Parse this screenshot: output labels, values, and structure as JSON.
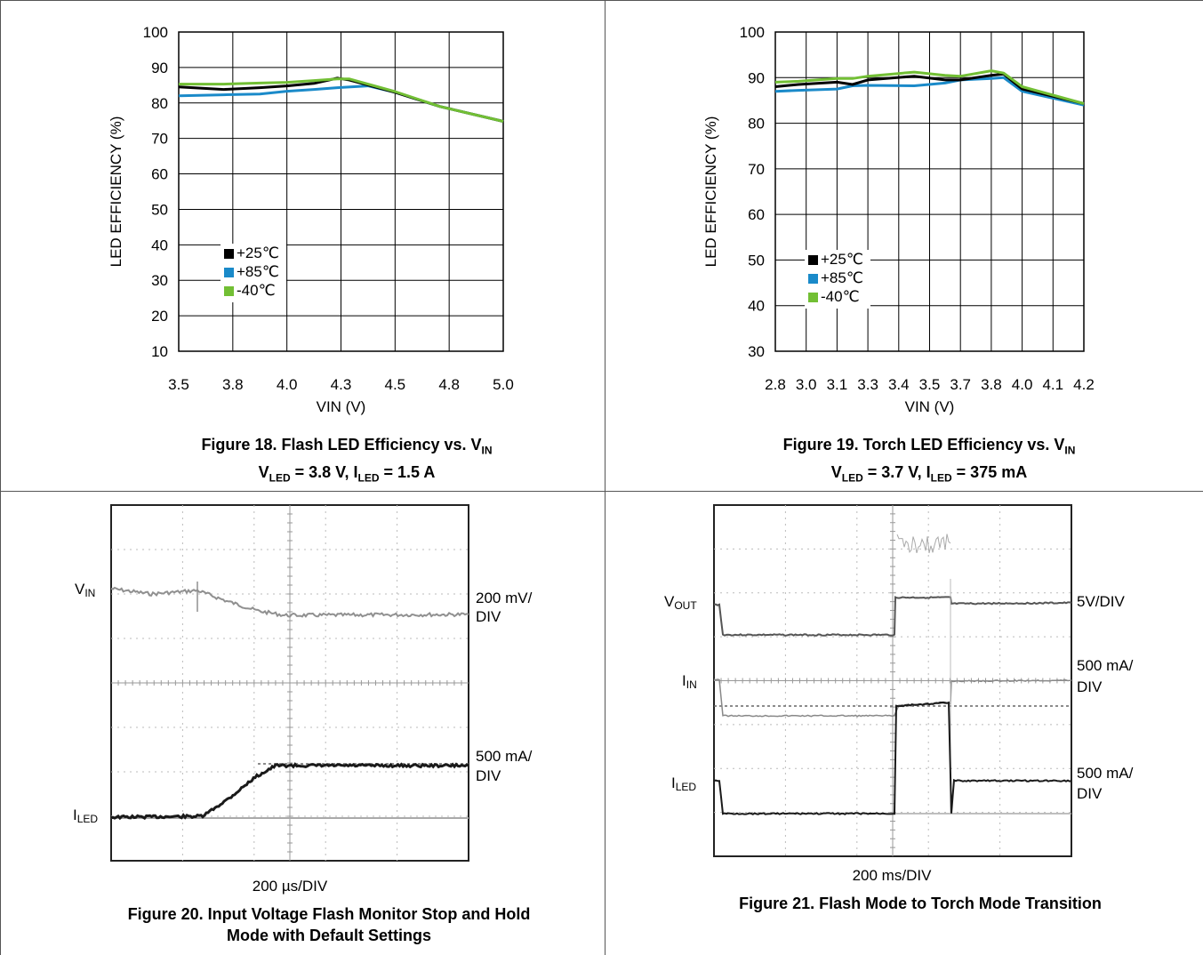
{
  "colors": {
    "series_25": "#000000",
    "series_85": "#1a8ac9",
    "series_m40": "#72bf34",
    "trace_light": "#909090",
    "trace_dark": "#1a1a1a"
  },
  "fig18": {
    "caption_line1": "Figure 18. Flash LED Efficiency vs. V",
    "caption_line1_sub": "IN",
    "caption_line2_a": "V",
    "caption_line2_a_sub": "LED",
    "caption_line2_b": " = 3.8 V, I",
    "caption_line2_b_sub": "LED",
    "caption_line2_c": " = 1.5 A"
  },
  "fig19": {
    "caption_line1": "Figure 19. Torch LED Efficiency vs. V",
    "caption_line1_sub": "IN",
    "caption_line2_a": "V",
    "caption_line2_a_sub": "LED",
    "caption_line2_b": " = 3.7 V, I",
    "caption_line2_b_sub": "LED",
    "caption_line2_c": " = 375 mA"
  },
  "fig20": {
    "label_vin": "V",
    "label_vin_sub": "IN",
    "label_iled": "I",
    "label_iled_sub": "LED",
    "scale_vin_1": "200 mV/",
    "scale_vin_2": "DIV",
    "scale_iled_1": "500 mA/",
    "scale_iled_2": "DIV",
    "time_scale": "200 µs/DIV",
    "caption_line1": "Figure 20. Input Voltage Flash Monitor Stop and Hold",
    "caption_line2": "Mode with Default Settings"
  },
  "fig21": {
    "label_vout": "V",
    "label_vout_sub": "OUT",
    "label_iin": "I",
    "label_iin_sub": "IN",
    "label_iled": "I",
    "label_iled_sub": "LED",
    "scale_vout": "5V/DIV",
    "scale_iin_1": "500 mA/",
    "scale_iin_2": "DIV",
    "scale_iled_1": "500 mA/",
    "scale_iled_2": "DIV",
    "time_scale": "200 ms/DIV",
    "caption": "Figure 21. Flash Mode to Torch Mode Transition"
  },
  "chart_data": [
    {
      "type": "line",
      "xlabel": "VIN (V)",
      "ylabel": "LED EFFICIENCY (%)",
      "xlim": [
        3.5,
        5.0
      ],
      "ylim": [
        10,
        100
      ],
      "xticks": [
        "3.5",
        "3.8",
        "4.0",
        "4.3",
        "4.5",
        "4.8",
        "5.0"
      ],
      "yticks": [
        "10",
        "20",
        "30",
        "40",
        "50",
        "60",
        "70",
        "80",
        "90",
        "100"
      ],
      "grid": true,
      "legend_position": "left-center",
      "series": [
        {
          "name": "+25℃",
          "x": [
            3.5,
            3.75,
            3.9,
            4.0,
            4.15,
            4.28,
            4.33,
            4.5,
            4.75,
            5.0
          ],
          "y": [
            84.5,
            83.8,
            84.3,
            84.8,
            85.5,
            87,
            86.5,
            83,
            79,
            74.8
          ]
        },
        {
          "name": "+85℃",
          "x": [
            3.5,
            3.75,
            3.9,
            4.0,
            4.15,
            4.28,
            4.4,
            4.5,
            4.75,
            5.0
          ],
          "y": [
            82,
            82.3,
            82.5,
            83.3,
            83.8,
            84.3,
            84.8,
            83,
            79,
            74.8
          ]
        },
        {
          "name": "-40℃",
          "x": [
            3.5,
            3.75,
            3.9,
            4.0,
            4.15,
            4.28,
            4.33,
            4.5,
            4.75,
            5.0
          ],
          "y": [
            85.3,
            85.3,
            85.6,
            85.8,
            86.3,
            86.8,
            86.8,
            83.2,
            79,
            74.8
          ]
        }
      ]
    },
    {
      "type": "line",
      "xlabel": "VIN (V)",
      "ylabel": "LED EFFICIENCY (%)",
      "xlim": [
        2.8,
        4.2
      ],
      "ylim": [
        30,
        100
      ],
      "xticks": [
        "2.8",
        "3.0",
        "3.1",
        "3.3",
        "3.4",
        "3.5",
        "3.7",
        "3.8",
        "4.0",
        "4.1",
        "4.2"
      ],
      "yticks": [
        "30",
        "40",
        "50",
        "60",
        "70",
        "80",
        "90",
        "100"
      ],
      "grid": true,
      "legend_position": "left-center",
      "series": [
        {
          "name": "+25℃",
          "x": [
            2.8,
            2.95,
            3.1,
            3.2,
            3.3,
            3.45,
            3.6,
            3.7,
            3.8,
            3.88,
            4.0,
            4.2
          ],
          "y": [
            88,
            88.5,
            89,
            88.5,
            89.5,
            90.3,
            89.5,
            89.5,
            90.5,
            90.8,
            87.5,
            84.3
          ]
        },
        {
          "name": "+85℃",
          "x": [
            2.8,
            2.95,
            3.1,
            3.2,
            3.3,
            3.45,
            3.6,
            3.7,
            3.8,
            3.88,
            4.0,
            4.2
          ],
          "y": [
            87,
            87.2,
            87.5,
            88.2,
            88.3,
            88.2,
            88.8,
            89.5,
            89.8,
            90,
            87,
            84
          ]
        },
        {
          "name": "-40℃",
          "x": [
            2.8,
            2.95,
            3.1,
            3.2,
            3.3,
            3.45,
            3.6,
            3.7,
            3.8,
            3.88,
            4.0,
            4.2
          ],
          "y": [
            89,
            89.2,
            89.8,
            89.8,
            90.3,
            91.2,
            90.5,
            90.3,
            91.5,
            91,
            88,
            84.3
          ]
        }
      ]
    }
  ]
}
